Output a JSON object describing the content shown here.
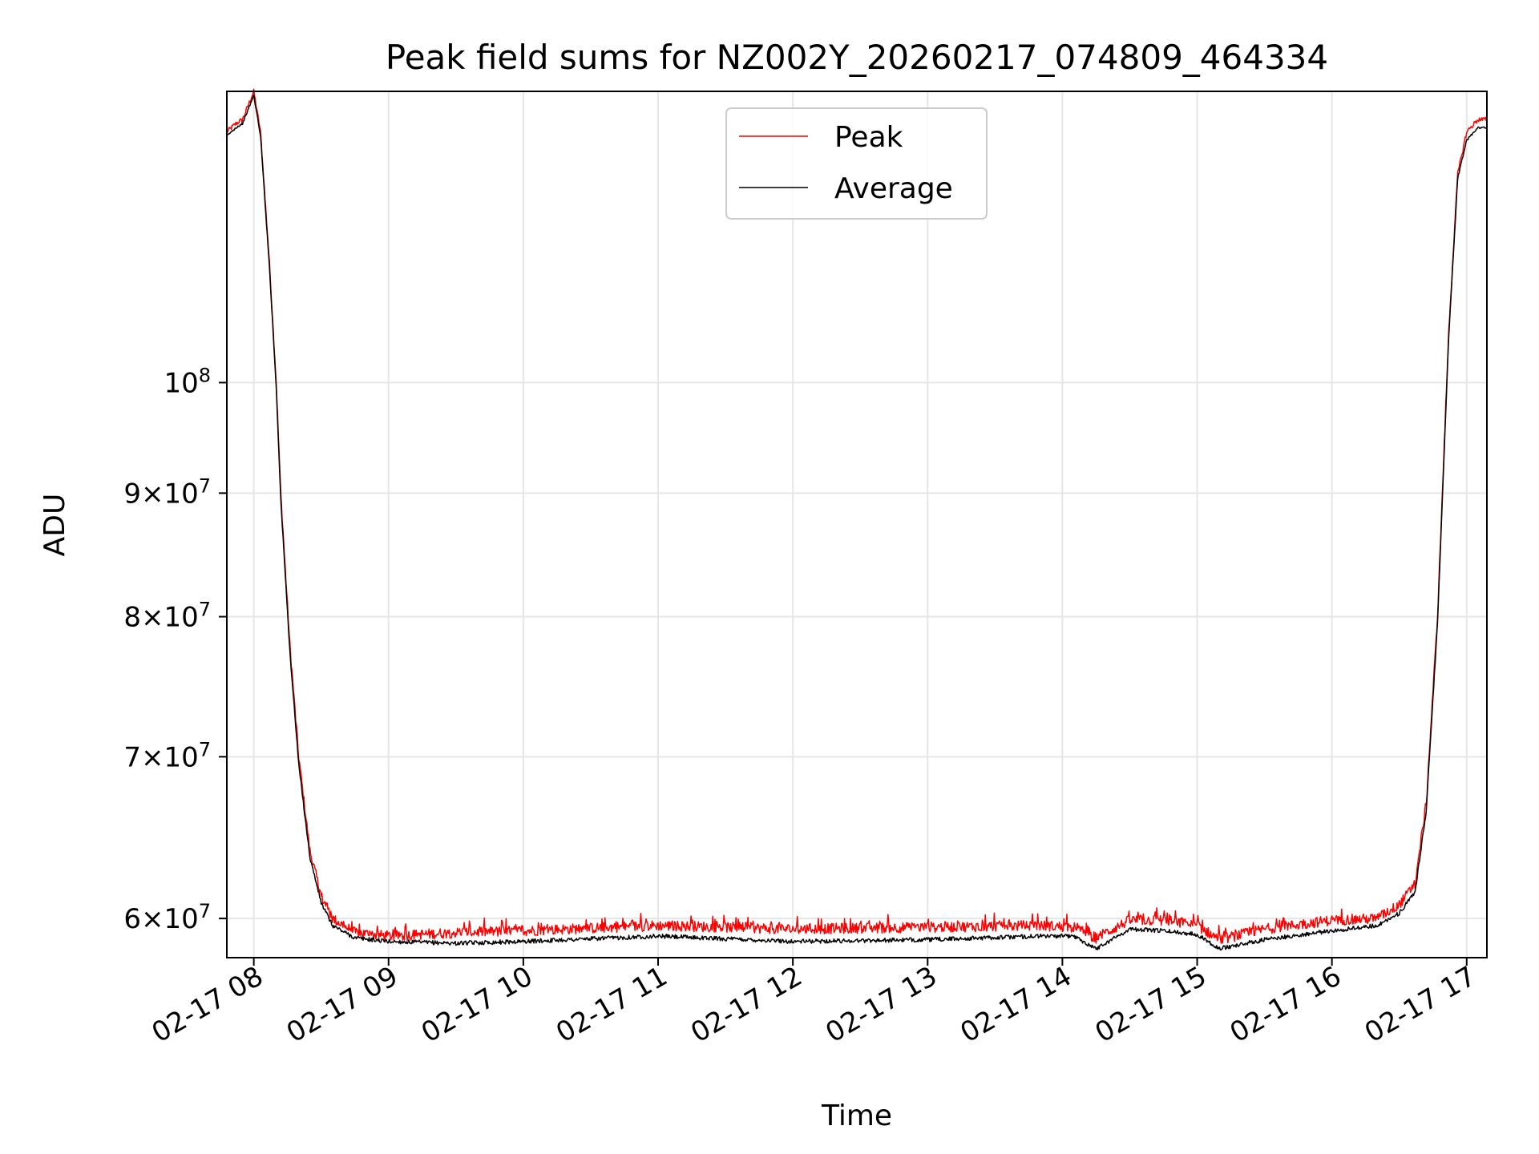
{
  "chart_data": {
    "type": "line",
    "title": "Peak field sums for NZ002Y_20260217_074809_464334",
    "xlabel": "Time",
    "ylabel": "ADU",
    "y_scale": "log",
    "grid": true,
    "legend_placement": "upper center",
    "xlim": [
      "2026-02-17 07:48",
      "2026-02-17 17:09"
    ],
    "ylim": [
      57800000,
      132000000
    ],
    "x_ticks": [
      {
        "value": "2026-02-17 08:00",
        "label": "02-17 08"
      },
      {
        "value": "2026-02-17 09:00",
        "label": "02-17 09"
      },
      {
        "value": "2026-02-17 10:00",
        "label": "02-17 10"
      },
      {
        "value": "2026-02-17 11:00",
        "label": "02-17 11"
      },
      {
        "value": "2026-02-17 12:00",
        "label": "02-17 12"
      },
      {
        "value": "2026-02-17 13:00",
        "label": "02-17 13"
      },
      {
        "value": "2026-02-17 14:00",
        "label": "02-17 14"
      },
      {
        "value": "2026-02-17 15:00",
        "label": "02-17 15"
      },
      {
        "value": "2026-02-17 16:00",
        "label": "02-17 16"
      },
      {
        "value": "2026-02-17 17:00",
        "label": "02-17 17"
      }
    ],
    "y_ticks": [
      {
        "value": 60000000,
        "mantissa": "6",
        "exponent": "7"
      },
      {
        "value": 70000000,
        "mantissa": "7",
        "exponent": "7"
      },
      {
        "value": 80000000,
        "mantissa": "8",
        "exponent": "7"
      },
      {
        "value": 90000000,
        "mantissa": "9",
        "exponent": "7"
      },
      {
        "value": 100000000,
        "mantissa": "",
        "exponent": "8"
      }
    ],
    "times_symbol": "×",
    "tick_base": "10",
    "series": [
      {
        "name": "Peak",
        "color": "#ff0000",
        "noise": 300000,
        "points": [
          [
            "2026-02-17 07:48",
            127000000
          ],
          [
            "2026-02-17 07:52",
            128000000
          ],
          [
            "2026-02-17 07:55",
            128500000
          ],
          [
            "2026-02-17 08:00",
            132000000
          ],
          [
            "2026-02-17 08:03",
            127000000
          ],
          [
            "2026-02-17 08:07",
            112000000
          ],
          [
            "2026-02-17 08:10",
            100000000
          ],
          [
            "2026-02-17 08:12",
            90000000
          ],
          [
            "2026-02-17 08:16",
            78000000
          ],
          [
            "2026-02-17 08:20",
            70000000
          ],
          [
            "2026-02-17 08:25",
            64000000
          ],
          [
            "2026-02-17 08:30",
            61300000
          ],
          [
            "2026-02-17 08:35",
            60000000
          ],
          [
            "2026-02-17 08:45",
            59200000
          ],
          [
            "2026-02-17 09:00",
            59000000
          ],
          [
            "2026-02-17 09:30",
            59200000
          ],
          [
            "2026-02-17 10:00",
            59300000
          ],
          [
            "2026-02-17 11:00",
            59600000
          ],
          [
            "2026-02-17 12:00",
            59400000
          ],
          [
            "2026-02-17 13:00",
            59500000
          ],
          [
            "2026-02-17 13:50",
            59600000
          ],
          [
            "2026-02-17 14:05",
            59500000
          ],
          [
            "2026-02-17 14:15",
            58900000
          ],
          [
            "2026-02-17 14:30",
            59900000
          ],
          [
            "2026-02-17 14:45",
            59900000
          ],
          [
            "2026-02-17 15:00",
            59600000
          ],
          [
            "2026-02-17 15:10",
            58800000
          ],
          [
            "2026-02-17 15:30",
            59400000
          ],
          [
            "2026-02-17 16:00",
            59900000
          ],
          [
            "2026-02-17 16:20",
            60000000
          ],
          [
            "2026-02-17 16:30",
            60800000
          ],
          [
            "2026-02-17 16:37",
            62000000
          ],
          [
            "2026-02-17 16:42",
            67000000
          ],
          [
            "2026-02-17 16:47",
            80000000
          ],
          [
            "2026-02-17 16:52",
            105000000
          ],
          [
            "2026-02-17 16:56",
            122000000
          ],
          [
            "2026-02-17 17:00",
            127000000
          ],
          [
            "2026-02-17 17:05",
            128500000
          ],
          [
            "2026-02-17 17:09",
            128500000
          ]
        ]
      },
      {
        "name": "Average",
        "color": "#000000",
        "noise": 120000,
        "points": [
          [
            "2026-02-17 07:48",
            126500000
          ],
          [
            "2026-02-17 07:52",
            127500000
          ],
          [
            "2026-02-17 07:55",
            128000000
          ],
          [
            "2026-02-17 08:00",
            131500000
          ],
          [
            "2026-02-17 08:03",
            126500000
          ],
          [
            "2026-02-17 08:07",
            111500000
          ],
          [
            "2026-02-17 08:10",
            99500000
          ],
          [
            "2026-02-17 08:12",
            89500000
          ],
          [
            "2026-02-17 08:16",
            77500000
          ],
          [
            "2026-02-17 08:20",
            69500000
          ],
          [
            "2026-02-17 08:25",
            63600000
          ],
          [
            "2026-02-17 08:30",
            60900000
          ],
          [
            "2026-02-17 08:35",
            59600000
          ],
          [
            "2026-02-17 08:45",
            58900000
          ],
          [
            "2026-02-17 09:00",
            58700000
          ],
          [
            "2026-02-17 09:30",
            58600000
          ],
          [
            "2026-02-17 10:00",
            58700000
          ],
          [
            "2026-02-17 11:00",
            59000000
          ],
          [
            "2026-02-17 12:00",
            58700000
          ],
          [
            "2026-02-17 13:00",
            58800000
          ],
          [
            "2026-02-17 13:50",
            59000000
          ],
          [
            "2026-02-17 14:05",
            59000000
          ],
          [
            "2026-02-17 14:15",
            58300000
          ],
          [
            "2026-02-17 14:30",
            59400000
          ],
          [
            "2026-02-17 14:45",
            59300000
          ],
          [
            "2026-02-17 15:00",
            59100000
          ],
          [
            "2026-02-17 15:10",
            58300000
          ],
          [
            "2026-02-17 15:30",
            58800000
          ],
          [
            "2026-02-17 16:00",
            59300000
          ],
          [
            "2026-02-17 16:20",
            59600000
          ],
          [
            "2026-02-17 16:30",
            60300000
          ],
          [
            "2026-02-17 16:37",
            61500000
          ],
          [
            "2026-02-17 16:42",
            66500000
          ],
          [
            "2026-02-17 16:47",
            79500000
          ],
          [
            "2026-02-17 16:52",
            104500000
          ],
          [
            "2026-02-17 16:56",
            121500000
          ],
          [
            "2026-02-17 17:00",
            126000000
          ],
          [
            "2026-02-17 17:05",
            127500000
          ],
          [
            "2026-02-17 17:09",
            127500000
          ]
        ]
      }
    ]
  }
}
